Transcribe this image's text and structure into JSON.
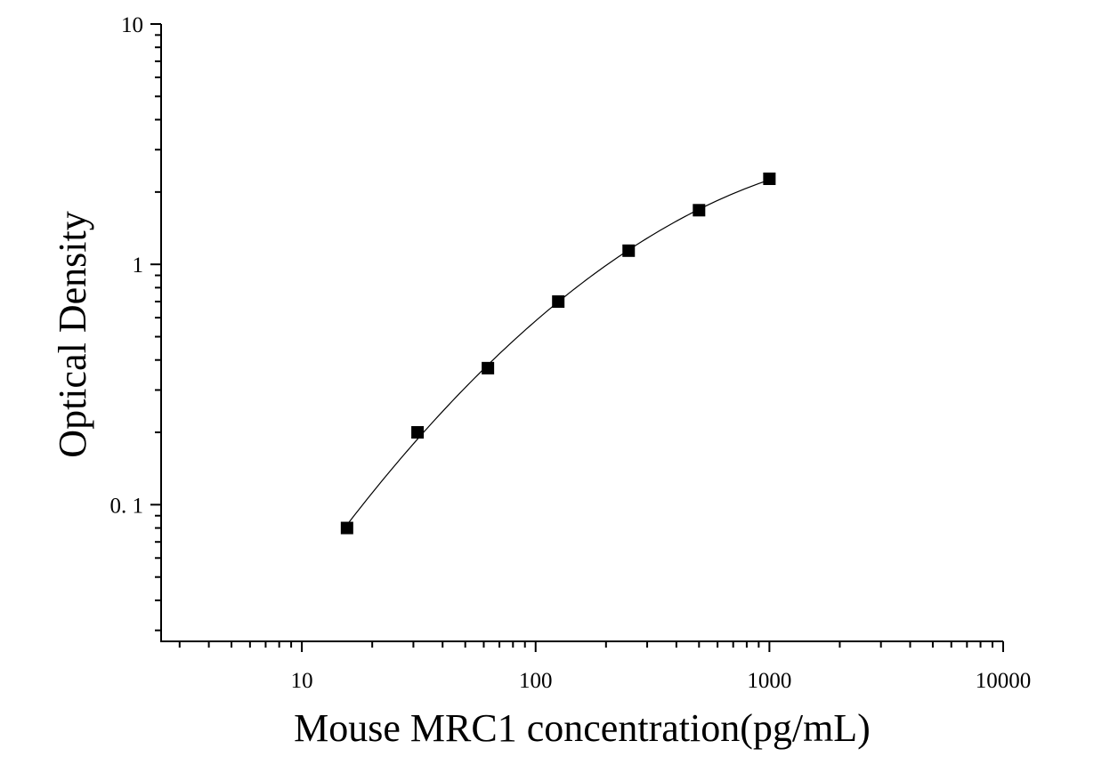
{
  "chart_data": {
    "type": "scatter",
    "xlabel": "Mouse MRC1 concentration(pg/mL)",
    "ylabel": "Optical Density",
    "x_scale": "log",
    "y_scale": "log",
    "xlim": [
      2.5,
      10000
    ],
    "ylim": [
      0.027,
      10
    ],
    "x_ticks": [
      10,
      100,
      1000,
      10000
    ],
    "x_tick_labels": [
      "10",
      "100",
      "1000",
      "10000"
    ],
    "y_ticks": [
      0.1,
      1,
      10
    ],
    "y_tick_labels": [
      "0. 1",
      "1",
      "10"
    ],
    "grid": false,
    "series": [
      {
        "x": [
          15.6,
          31.25,
          62.5,
          125,
          250,
          500,
          1000
        ],
        "y": [
          0.08,
          0.2,
          0.37,
          0.7,
          1.14,
          1.68,
          2.27
        ],
        "marker": "square",
        "color": "#000000",
        "fit_curve": true
      }
    ]
  }
}
